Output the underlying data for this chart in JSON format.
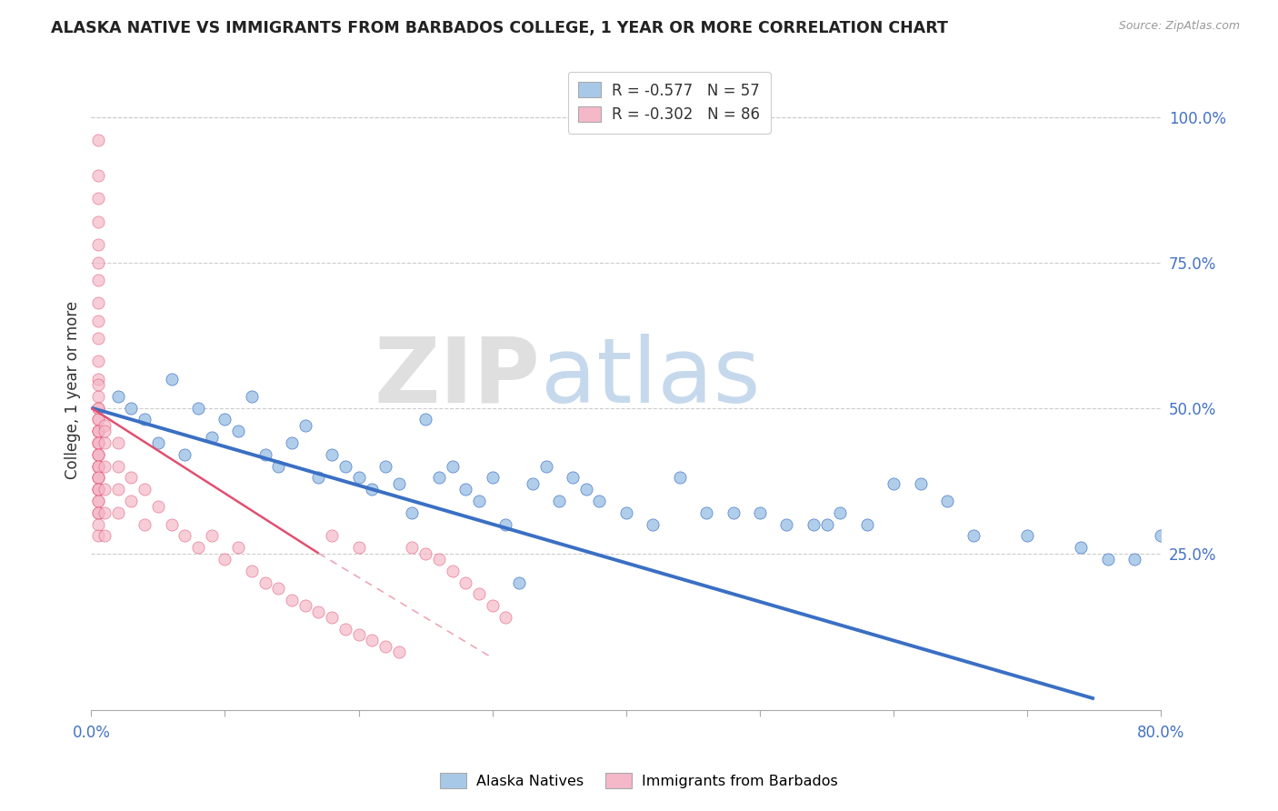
{
  "title": "ALASKA NATIVE VS IMMIGRANTS FROM BARBADOS COLLEGE, 1 YEAR OR MORE CORRELATION CHART",
  "source": "Source: ZipAtlas.com",
  "ylabel": "College, 1 year or more",
  "ylabel_right_ticks": [
    "100.0%",
    "75.0%",
    "50.0%",
    "25.0%"
  ],
  "ylabel_right_vals": [
    1.0,
    0.75,
    0.5,
    0.25
  ],
  "xlim": [
    0.0,
    0.8
  ],
  "ylim": [
    -0.02,
    1.08
  ],
  "legend_alaska": "R = -0.577   N = 57",
  "legend_barbados": "R = -0.302   N = 86",
  "legend_bottom_alaska": "Alaska Natives",
  "legend_bottom_barbados": "Immigrants from Barbados",
  "color_alaska": "#a8c8e8",
  "color_barbados": "#f4b8c8",
  "color_alaska_line": "#3a6fc4",
  "color_barbados_line": "#e05070",
  "color_text_blue": "#4472c4",
  "watermark_zip": "ZIP",
  "watermark_atlas": "atlas",
  "alaska_scatter_x": [
    0.02,
    0.03,
    0.04,
    0.05,
    0.06,
    0.07,
    0.08,
    0.09,
    0.1,
    0.11,
    0.12,
    0.13,
    0.14,
    0.15,
    0.16,
    0.17,
    0.18,
    0.19,
    0.2,
    0.21,
    0.22,
    0.23,
    0.24,
    0.25,
    0.26,
    0.27,
    0.28,
    0.29,
    0.3,
    0.31,
    0.32,
    0.33,
    0.34,
    0.35,
    0.36,
    0.37,
    0.38,
    0.4,
    0.42,
    0.44,
    0.46,
    0.48,
    0.5,
    0.52,
    0.54,
    0.56,
    0.58,
    0.62,
    0.64,
    0.66,
    0.7,
    0.74,
    0.76,
    0.78,
    0.8,
    0.55,
    0.6
  ],
  "alaska_scatter_y": [
    0.52,
    0.5,
    0.48,
    0.44,
    0.55,
    0.42,
    0.5,
    0.45,
    0.48,
    0.46,
    0.52,
    0.42,
    0.4,
    0.44,
    0.47,
    0.38,
    0.42,
    0.4,
    0.38,
    0.36,
    0.4,
    0.37,
    0.32,
    0.48,
    0.38,
    0.4,
    0.36,
    0.34,
    0.38,
    0.3,
    0.2,
    0.37,
    0.4,
    0.34,
    0.38,
    0.36,
    0.34,
    0.32,
    0.3,
    0.38,
    0.32,
    0.32,
    0.32,
    0.3,
    0.3,
    0.32,
    0.3,
    0.37,
    0.34,
    0.28,
    0.28,
    0.26,
    0.24,
    0.24,
    0.28,
    0.3,
    0.37
  ],
  "barbados_scatter_x": [
    0.005,
    0.005,
    0.005,
    0.005,
    0.005,
    0.005,
    0.005,
    0.005,
    0.005,
    0.005,
    0.005,
    0.005,
    0.005,
    0.005,
    0.005,
    0.005,
    0.005,
    0.005,
    0.005,
    0.005,
    0.005,
    0.005,
    0.005,
    0.005,
    0.005,
    0.005,
    0.005,
    0.005,
    0.005,
    0.005,
    0.005,
    0.005,
    0.005,
    0.005,
    0.005,
    0.005,
    0.005,
    0.005,
    0.005,
    0.005,
    0.005,
    0.005,
    0.01,
    0.01,
    0.01,
    0.01,
    0.01,
    0.01,
    0.01,
    0.02,
    0.02,
    0.02,
    0.02,
    0.03,
    0.03,
    0.04,
    0.04,
    0.05,
    0.06,
    0.07,
    0.08,
    0.09,
    0.1,
    0.11,
    0.12,
    0.13,
    0.14,
    0.15,
    0.16,
    0.17,
    0.18,
    0.19,
    0.2,
    0.21,
    0.22,
    0.23,
    0.24,
    0.25,
    0.26,
    0.27,
    0.28,
    0.29,
    0.3,
    0.31,
    0.18,
    0.2
  ],
  "barbados_scatter_y": [
    0.96,
    0.9,
    0.86,
    0.82,
    0.78,
    0.75,
    0.72,
    0.68,
    0.65,
    0.62,
    0.58,
    0.55,
    0.52,
    0.5,
    0.48,
    0.46,
    0.44,
    0.42,
    0.4,
    0.38,
    0.36,
    0.34,
    0.32,
    0.54,
    0.5,
    0.48,
    0.46,
    0.44,
    0.42,
    0.4,
    0.38,
    0.36,
    0.34,
    0.32,
    0.3,
    0.28,
    0.46,
    0.44,
    0.42,
    0.4,
    0.38,
    0.36,
    0.47,
    0.44,
    0.4,
    0.36,
    0.32,
    0.28,
    0.46,
    0.44,
    0.4,
    0.36,
    0.32,
    0.38,
    0.34,
    0.36,
    0.3,
    0.33,
    0.3,
    0.28,
    0.26,
    0.28,
    0.24,
    0.26,
    0.22,
    0.2,
    0.19,
    0.17,
    0.16,
    0.15,
    0.14,
    0.12,
    0.11,
    0.1,
    0.09,
    0.08,
    0.26,
    0.25,
    0.24,
    0.22,
    0.2,
    0.18,
    0.16,
    0.14,
    0.28,
    0.26
  ],
  "alaska_line_x": [
    0.0,
    0.75
  ],
  "alaska_line_y": [
    0.5,
    0.0
  ],
  "barbados_line_x": [
    0.0,
    0.17
  ],
  "barbados_line_y": [
    0.5,
    0.25
  ],
  "grid_color": "#cccccc",
  "bg_color": "#ffffff"
}
